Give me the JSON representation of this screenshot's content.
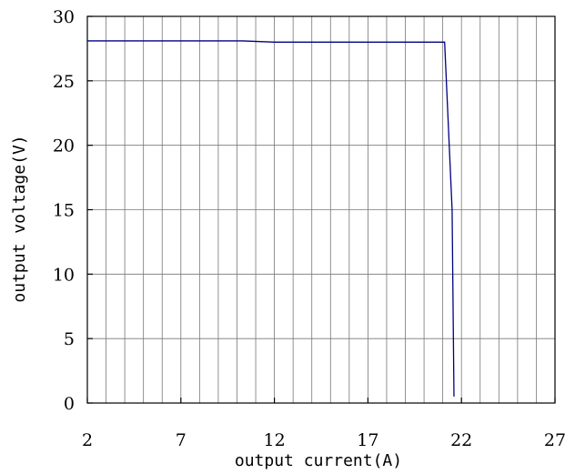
{
  "chart_data": {
    "type": "line",
    "xlabel": "output current(A)",
    "ylabel": "output voltage(V)",
    "xlim": [
      2,
      27
    ],
    "ylim": [
      0,
      30
    ],
    "xticks": [
      "2",
      "7",
      "12",
      "17",
      "22",
      "27"
    ],
    "yticks": [
      "0",
      "5",
      "10",
      "15",
      "20",
      "25",
      "30"
    ],
    "grid": true,
    "vertical_grid_step": 1,
    "horizontal_grid_step": 5,
    "line_color": "#000080",
    "series": [
      {
        "x": [
          2,
          10.3,
          12,
          21.1,
          21.5,
          21.6
        ],
        "y": [
          28.1,
          28.1,
          28.0,
          28.0,
          15,
          0.5
        ]
      }
    ]
  }
}
